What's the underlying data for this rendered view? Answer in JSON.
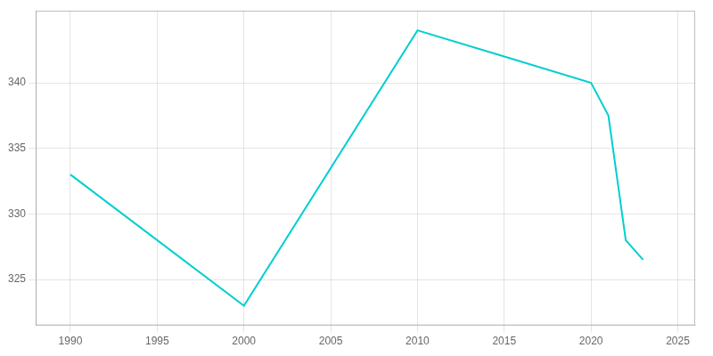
{
  "chart_data": {
    "type": "line",
    "x": [
      1990,
      2000,
      2010,
      2015,
      2020,
      2021,
      2022,
      2023
    ],
    "values": [
      333,
      323,
      344,
      342,
      340,
      337.5,
      328,
      326.5
    ],
    "color": "#00CED1",
    "xlim": [
      1988,
      2026
    ],
    "xticks": [
      1990,
      1995,
      2000,
      2005,
      2010,
      2015,
      2020,
      2025
    ],
    "ylim": [
      321.5,
      345.5
    ],
    "yticks": [
      325,
      330,
      335,
      340
    ],
    "grid": true
  }
}
